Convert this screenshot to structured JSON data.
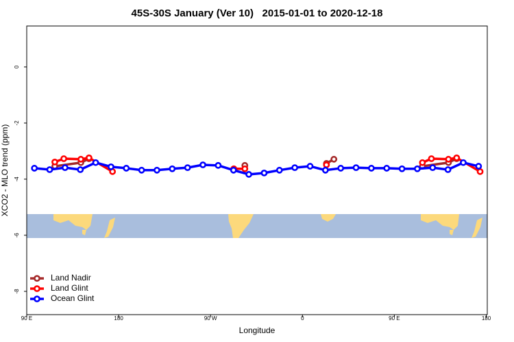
{
  "chart_data": {
    "type": "line",
    "title": "45S-30S January (Ver 10)   2015-01-01 to 2020-12-18",
    "xlabel": "Longitude",
    "ylabel": "XCO2 - MLO trend (ppm)",
    "xlim": [
      90,
      541
    ],
    "ylim": [
      -8.83,
      1.46
    ],
    "xticks": [
      {
        "value": 90,
        "label": "90 E"
      },
      180,
      {
        "value": 270,
        "label": "90 W"
      },
      {
        "value": 360,
        "label": "0"
      },
      {
        "value": 450,
        "label": "90 E"
      },
      {
        "value": 540,
        "label": "180"
      }
    ],
    "yticks": [
      0,
      -2,
      -4,
      -6,
      -8
    ],
    "legend": "bottomleft",
    "series": [
      {
        "name": "Land Nadir",
        "color": "#a52a2a",
        "x": [
          117.5,
          143,
          151,
          null,
          303.6,
          null,
          383.5,
          390.8,
          null,
          477.5,
          503,
          511
        ],
        "values": [
          -3.54,
          -3.41,
          -3.27,
          null,
          -3.51,
          null,
          -3.44,
          -3.29,
          null,
          -3.54,
          -3.41,
          -3.27
        ]
      },
      {
        "name": "Land Glint",
        "color": "#ff0000",
        "x": [
          117.5,
          126.3,
          143,
          151,
          174,
          null,
          292.8,
          303.6,
          null,
          383.5,
          null,
          477.5,
          486.3,
          503,
          511,
          534
        ],
        "values": [
          -3.39,
          -3.27,
          -3.29,
          -3.24,
          -3.73,
          null,
          -3.63,
          -3.63,
          null,
          -3.49,
          null,
          -3.41,
          -3.27,
          -3.29,
          -3.24,
          -3.73
        ]
      },
      {
        "name": "Ocean Glint",
        "color": "#0000ff",
        "x": [
          97.5,
          112.5,
          127.5,
          142.5,
          157.5,
          172.5,
          187.5,
          202.5,
          217.5,
          232.5,
          247.5,
          262.5,
          277.5,
          292.5,
          307.5,
          322.5,
          337.5,
          352.5,
          367.5,
          382.5,
          397.5,
          412.5,
          427.5,
          442.5,
          457.5,
          472.5,
          487.5,
          502.5,
          517.5,
          532.5
        ],
        "values": [
          -3.61,
          -3.66,
          -3.59,
          -3.66,
          -3.41,
          -3.56,
          -3.61,
          -3.68,
          -3.68,
          -3.63,
          -3.59,
          -3.49,
          -3.51,
          -3.68,
          -3.83,
          -3.78,
          -3.68,
          -3.59,
          -3.54,
          -3.68,
          -3.61,
          -3.59,
          -3.61,
          -3.61,
          -3.63,
          -3.63,
          -3.59,
          -3.66,
          -3.41,
          -3.54
        ]
      }
    ]
  }
}
